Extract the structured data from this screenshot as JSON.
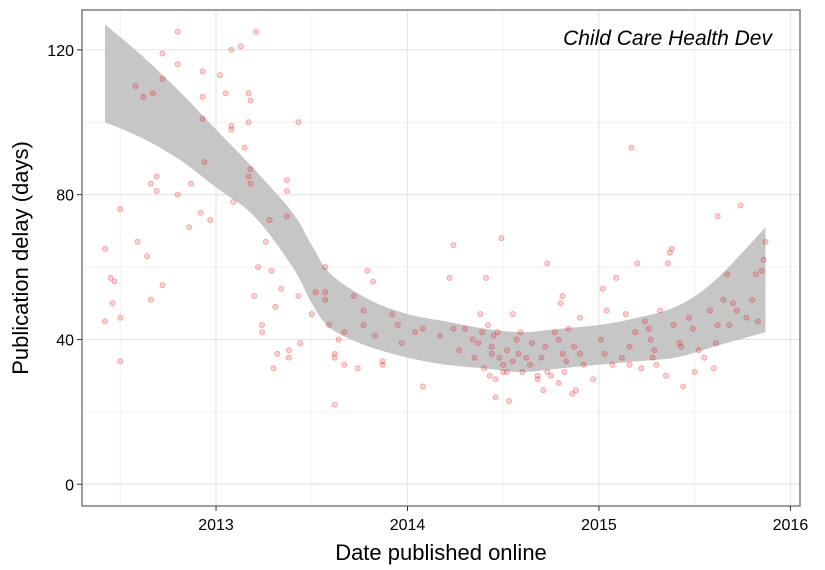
{
  "chart_data": {
    "type": "scatter",
    "title": "",
    "annotation": "Child Care Health Dev",
    "xlabel": "Date published online",
    "ylabel": "Publication delay (days)",
    "x_unit": "year",
    "xlim": [
      2012.3,
      2016.05
    ],
    "ylim": [
      -6,
      131
    ],
    "x_ticks": [
      2013,
      2014,
      2015,
      2016
    ],
    "x_tick_labels": [
      "2013",
      "2014",
      "2015",
      "2016"
    ],
    "y_ticks": [
      0,
      40,
      80,
      120
    ],
    "y_tick_labels": [
      "0",
      "40",
      "80",
      "120"
    ],
    "grid": true,
    "legend": "none",
    "point_color": "#e41a1c",
    "band_color": "#c6c6c6",
    "points": [
      [
        2012.42,
        45
      ],
      [
        2012.42,
        65
      ],
      [
        2012.45,
        57
      ],
      [
        2012.46,
        50
      ],
      [
        2012.47,
        56
      ],
      [
        2012.5,
        34
      ],
      [
        2012.5,
        46
      ],
      [
        2012.5,
        76
      ],
      [
        2012.58,
        110
      ],
      [
        2012.59,
        67
      ],
      [
        2012.62,
        107
      ],
      [
        2012.64,
        63
      ],
      [
        2012.66,
        83
      ],
      [
        2012.66,
        51
      ],
      [
        2012.67,
        108
      ],
      [
        2012.69,
        81
      ],
      [
        2012.69,
        85
      ],
      [
        2012.72,
        119
      ],
      [
        2012.72,
        112
      ],
      [
        2012.72,
        55
      ],
      [
        2012.8,
        125
      ],
      [
        2012.8,
        116
      ],
      [
        2012.8,
        80
      ],
      [
        2012.86,
        71
      ],
      [
        2012.87,
        83
      ],
      [
        2012.92,
        75
      ],
      [
        2012.93,
        114
      ],
      [
        2012.93,
        107
      ],
      [
        2012.93,
        101
      ],
      [
        2012.94,
        89
      ],
      [
        2012.97,
        73
      ],
      [
        2013.02,
        113
      ],
      [
        2013.05,
        108
      ],
      [
        2013.08,
        120
      ],
      [
        2013.08,
        98
      ],
      [
        2013.08,
        99
      ],
      [
        2013.09,
        78
      ],
      [
        2013.13,
        121
      ],
      [
        2013.15,
        93
      ],
      [
        2013.17,
        85
      ],
      [
        2013.17,
        100
      ],
      [
        2013.17,
        108
      ],
      [
        2013.18,
        106
      ],
      [
        2013.18,
        87
      ],
      [
        2013.18,
        83
      ],
      [
        2013.2,
        52
      ],
      [
        2013.21,
        125
      ],
      [
        2013.22,
        60
      ],
      [
        2013.24,
        44
      ],
      [
        2013.24,
        42
      ],
      [
        2013.26,
        67
      ],
      [
        2013.28,
        73
      ],
      [
        2013.29,
        59
      ],
      [
        2013.3,
        32
      ],
      [
        2013.31,
        49
      ],
      [
        2013.32,
        36
      ],
      [
        2013.34,
        54
      ],
      [
        2013.37,
        84
      ],
      [
        2013.37,
        81
      ],
      [
        2013.37,
        74
      ],
      [
        2013.38,
        37
      ],
      [
        2013.38,
        35
      ],
      [
        2013.43,
        100
      ],
      [
        2013.43,
        52
      ],
      [
        2013.44,
        39
      ],
      [
        2013.5,
        47
      ],
      [
        2013.52,
        53
      ],
      [
        2013.57,
        60
      ],
      [
        2013.57,
        53
      ],
      [
        2013.57,
        51
      ],
      [
        2013.59,
        44
      ],
      [
        2013.62,
        22
      ],
      [
        2013.62,
        36
      ],
      [
        2013.62,
        35
      ],
      [
        2013.64,
        40
      ],
      [
        2013.67,
        33
      ],
      [
        2013.67,
        42
      ],
      [
        2013.72,
        52
      ],
      [
        2013.74,
        32
      ],
      [
        2013.77,
        44
      ],
      [
        2013.77,
        48
      ],
      [
        2013.79,
        59
      ],
      [
        2013.82,
        56
      ],
      [
        2013.83,
        41
      ],
      [
        2013.87,
        34
      ],
      [
        2013.87,
        33
      ],
      [
        2013.92,
        47
      ],
      [
        2013.95,
        44
      ],
      [
        2013.97,
        39
      ],
      [
        2014.04,
        42
      ],
      [
        2014.08,
        43
      ],
      [
        2014.08,
        27
      ],
      [
        2014.17,
        41
      ],
      [
        2014.22,
        57
      ],
      [
        2014.24,
        66
      ],
      [
        2014.24,
        43
      ],
      [
        2014.27,
        37
      ],
      [
        2014.3,
        43
      ],
      [
        2014.34,
        40
      ],
      [
        2014.35,
        35
      ],
      [
        2014.37,
        39
      ],
      [
        2014.38,
        47
      ],
      [
        2014.39,
        42
      ],
      [
        2014.4,
        32
      ],
      [
        2014.41,
        57
      ],
      [
        2014.42,
        44
      ],
      [
        2014.43,
        30
      ],
      [
        2014.44,
        38
      ],
      [
        2014.44,
        36
      ],
      [
        2014.45,
        41
      ],
      [
        2014.46,
        24
      ],
      [
        2014.46,
        29
      ],
      [
        2014.47,
        42
      ],
      [
        2014.48,
        35
      ],
      [
        2014.49,
        68
      ],
      [
        2014.5,
        31
      ],
      [
        2014.5,
        33
      ],
      [
        2014.52,
        31
      ],
      [
        2014.52,
        37
      ],
      [
        2014.53,
        23
      ],
      [
        2014.55,
        47
      ],
      [
        2014.55,
        34
      ],
      [
        2014.57,
        40
      ],
      [
        2014.58,
        36
      ],
      [
        2014.59,
        42
      ],
      [
        2014.6,
        31
      ],
      [
        2014.62,
        35
      ],
      [
        2014.64,
        33
      ],
      [
        2014.65,
        39
      ],
      [
        2014.68,
        30
      ],
      [
        2014.68,
        29
      ],
      [
        2014.7,
        35
      ],
      [
        2014.71,
        26
      ],
      [
        2014.72,
        38
      ],
      [
        2014.73,
        61
      ],
      [
        2014.73,
        31
      ],
      [
        2014.75,
        30
      ],
      [
        2014.77,
        42
      ],
      [
        2014.79,
        40
      ],
      [
        2014.79,
        28
      ],
      [
        2014.8,
        50
      ],
      [
        2014.81,
        52
      ],
      [
        2014.81,
        36
      ],
      [
        2014.82,
        31
      ],
      [
        2014.83,
        34
      ],
      [
        2014.84,
        43
      ],
      [
        2014.86,
        25
      ],
      [
        2014.87,
        38
      ],
      [
        2014.88,
        26
      ],
      [
        2014.9,
        46
      ],
      [
        2014.9,
        36
      ],
      [
        2014.92,
        33
      ],
      [
        2014.97,
        29
      ],
      [
        2015.01,
        40
      ],
      [
        2015.02,
        54
      ],
      [
        2015.03,
        36
      ],
      [
        2015.04,
        48
      ],
      [
        2015.07,
        33
      ],
      [
        2015.09,
        57
      ],
      [
        2015.12,
        35
      ],
      [
        2015.14,
        47
      ],
      [
        2015.16,
        38
      ],
      [
        2015.16,
        33
      ],
      [
        2015.17,
        93
      ],
      [
        2015.19,
        42
      ],
      [
        2015.2,
        61
      ],
      [
        2015.22,
        32
      ],
      [
        2015.24,
        45
      ],
      [
        2015.26,
        43
      ],
      [
        2015.27,
        40
      ],
      [
        2015.28,
        35
      ],
      [
        2015.29,
        37
      ],
      [
        2015.3,
        33
      ],
      [
        2015.32,
        48
      ],
      [
        2015.35,
        30
      ],
      [
        2015.36,
        61
      ],
      [
        2015.37,
        64
      ],
      [
        2015.38,
        65
      ],
      [
        2015.39,
        44
      ],
      [
        2015.42,
        39
      ],
      [
        2015.43,
        38
      ],
      [
        2015.44,
        27
      ],
      [
        2015.47,
        46
      ],
      [
        2015.49,
        43
      ],
      [
        2015.5,
        31
      ],
      [
        2015.52,
        37
      ],
      [
        2015.55,
        35
      ],
      [
        2015.58,
        48
      ],
      [
        2015.6,
        32
      ],
      [
        2015.61,
        39
      ],
      [
        2015.62,
        74
      ],
      [
        2015.62,
        44
      ],
      [
        2015.65,
        51
      ],
      [
        2015.67,
        58
      ],
      [
        2015.68,
        44
      ],
      [
        2015.7,
        50
      ],
      [
        2015.72,
        48
      ],
      [
        2015.74,
        77
      ],
      [
        2015.77,
        46
      ],
      [
        2015.8,
        51
      ],
      [
        2015.82,
        58
      ],
      [
        2015.83,
        45
      ],
      [
        2015.85,
        59
      ],
      [
        2015.86,
        62
      ],
      [
        2015.87,
        67
      ]
    ],
    "smooth_band": {
      "x": [
        2012.42,
        2012.6,
        2012.8,
        2013.0,
        2013.2,
        2013.4,
        2013.5,
        2013.6,
        2013.8,
        2014.0,
        2014.2,
        2014.4,
        2014.6,
        2014.8,
        2015.0,
        2015.2,
        2015.4,
        2015.6,
        2015.87
      ],
      "upper": [
        127,
        119,
        109,
        98,
        87,
        75,
        66,
        58,
        51,
        47,
        45,
        43,
        42,
        43,
        44,
        46,
        49,
        56,
        71
      ],
      "lower": [
        100,
        96,
        90,
        82,
        74,
        60,
        50,
        43,
        38,
        35,
        33,
        32,
        31,
        32,
        33,
        34,
        35,
        38,
        42
      ]
    }
  }
}
